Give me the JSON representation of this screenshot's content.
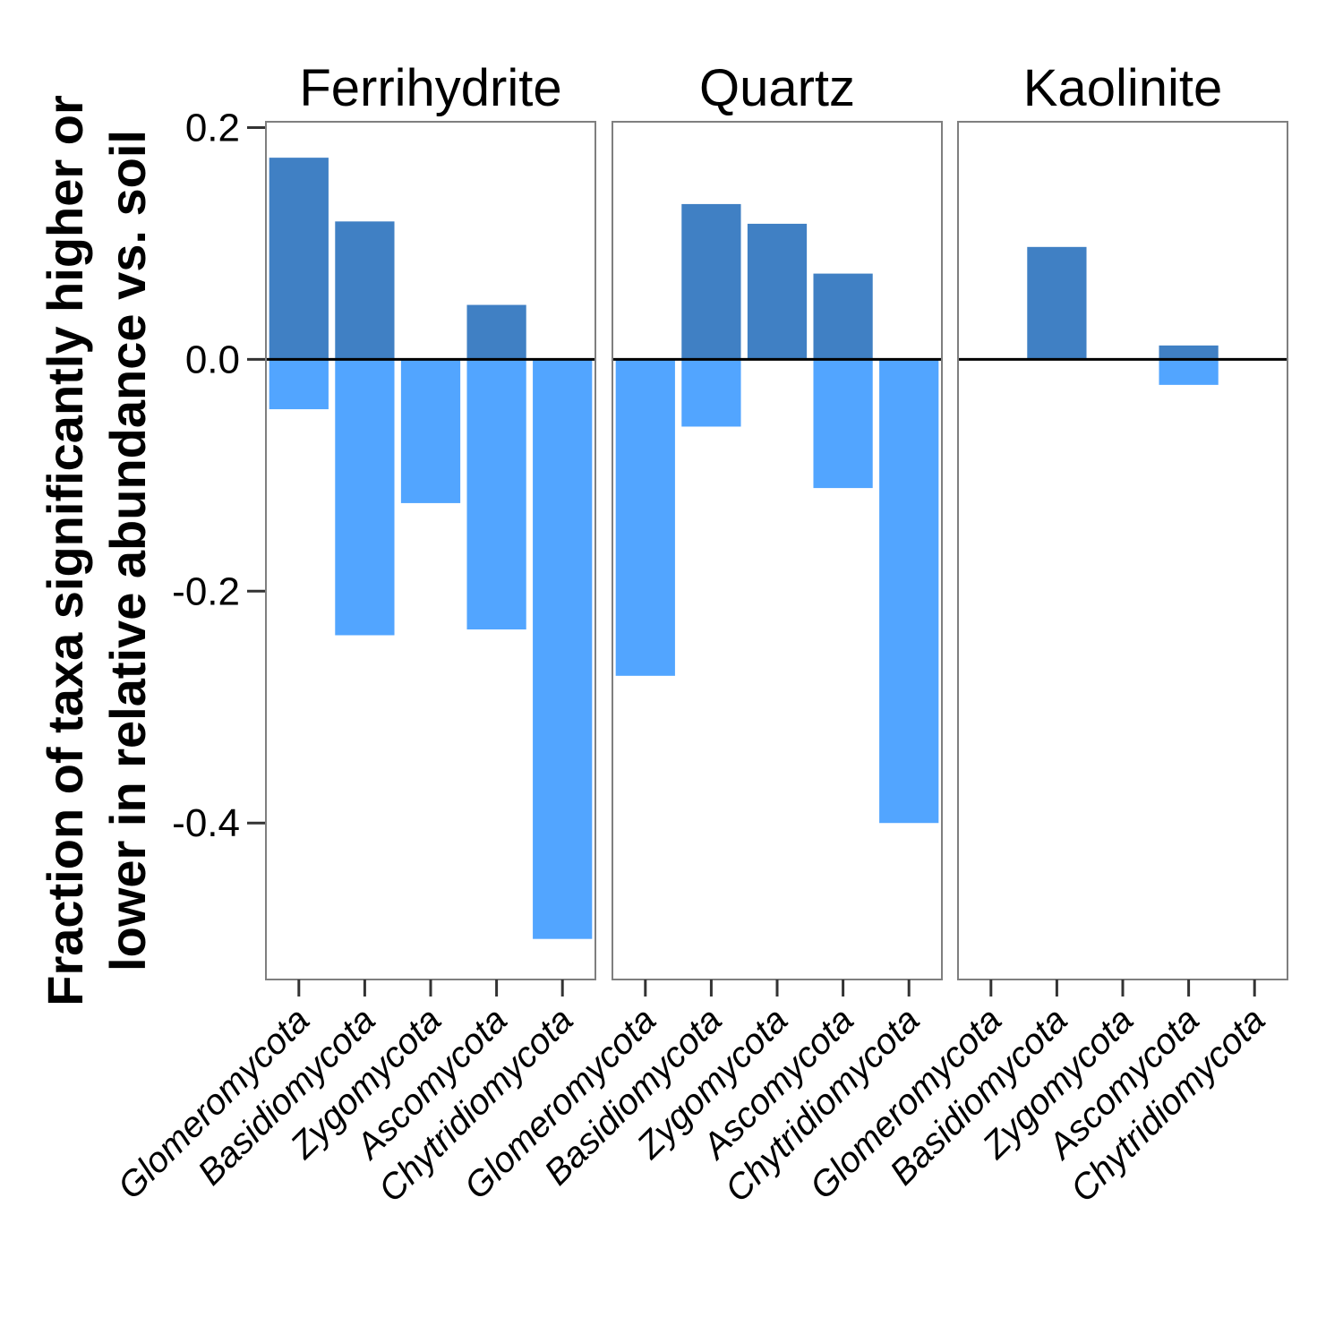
{
  "chart_data": {
    "type": "bar",
    "facets": [
      "Ferrihydrite",
      "Quartz",
      "Kaolinite"
    ],
    "categories": [
      "Glomeromycota",
      "Basidiomycota",
      "Zygomycota",
      "Ascomycota",
      "Chytridiomycota"
    ],
    "ylabel_lines": [
      "Fraction of taxa significantly higher or",
      "lower in relative abundance vs. soil"
    ],
    "ylim": [
      -0.535,
      0.205
    ],
    "yticks": [
      0.2,
      0.0,
      -0.2,
      -0.4
    ],
    "ytick_labels": [
      "0.2",
      "0.0",
      "-0.2",
      "-0.4"
    ],
    "series": [
      {
        "key": "higher",
        "color": "#4080C4",
        "values": [
          [
            0.174,
            0.119,
            0,
            0.047,
            0
          ],
          [
            0,
            0.134,
            0.117,
            0.074,
            0
          ],
          [
            0,
            0.097,
            0,
            0.012,
            0
          ]
        ]
      },
      {
        "key": "lower",
        "color": "#52A5FF",
        "values": [
          [
            -0.043,
            -0.238,
            -0.124,
            -0.233,
            -0.5
          ],
          [
            -0.273,
            -0.058,
            0,
            -0.111,
            -0.4
          ],
          [
            0,
            0,
            0,
            -0.022,
            0
          ]
        ]
      }
    ],
    "zero_line": true,
    "grid": false,
    "legend": "none"
  }
}
